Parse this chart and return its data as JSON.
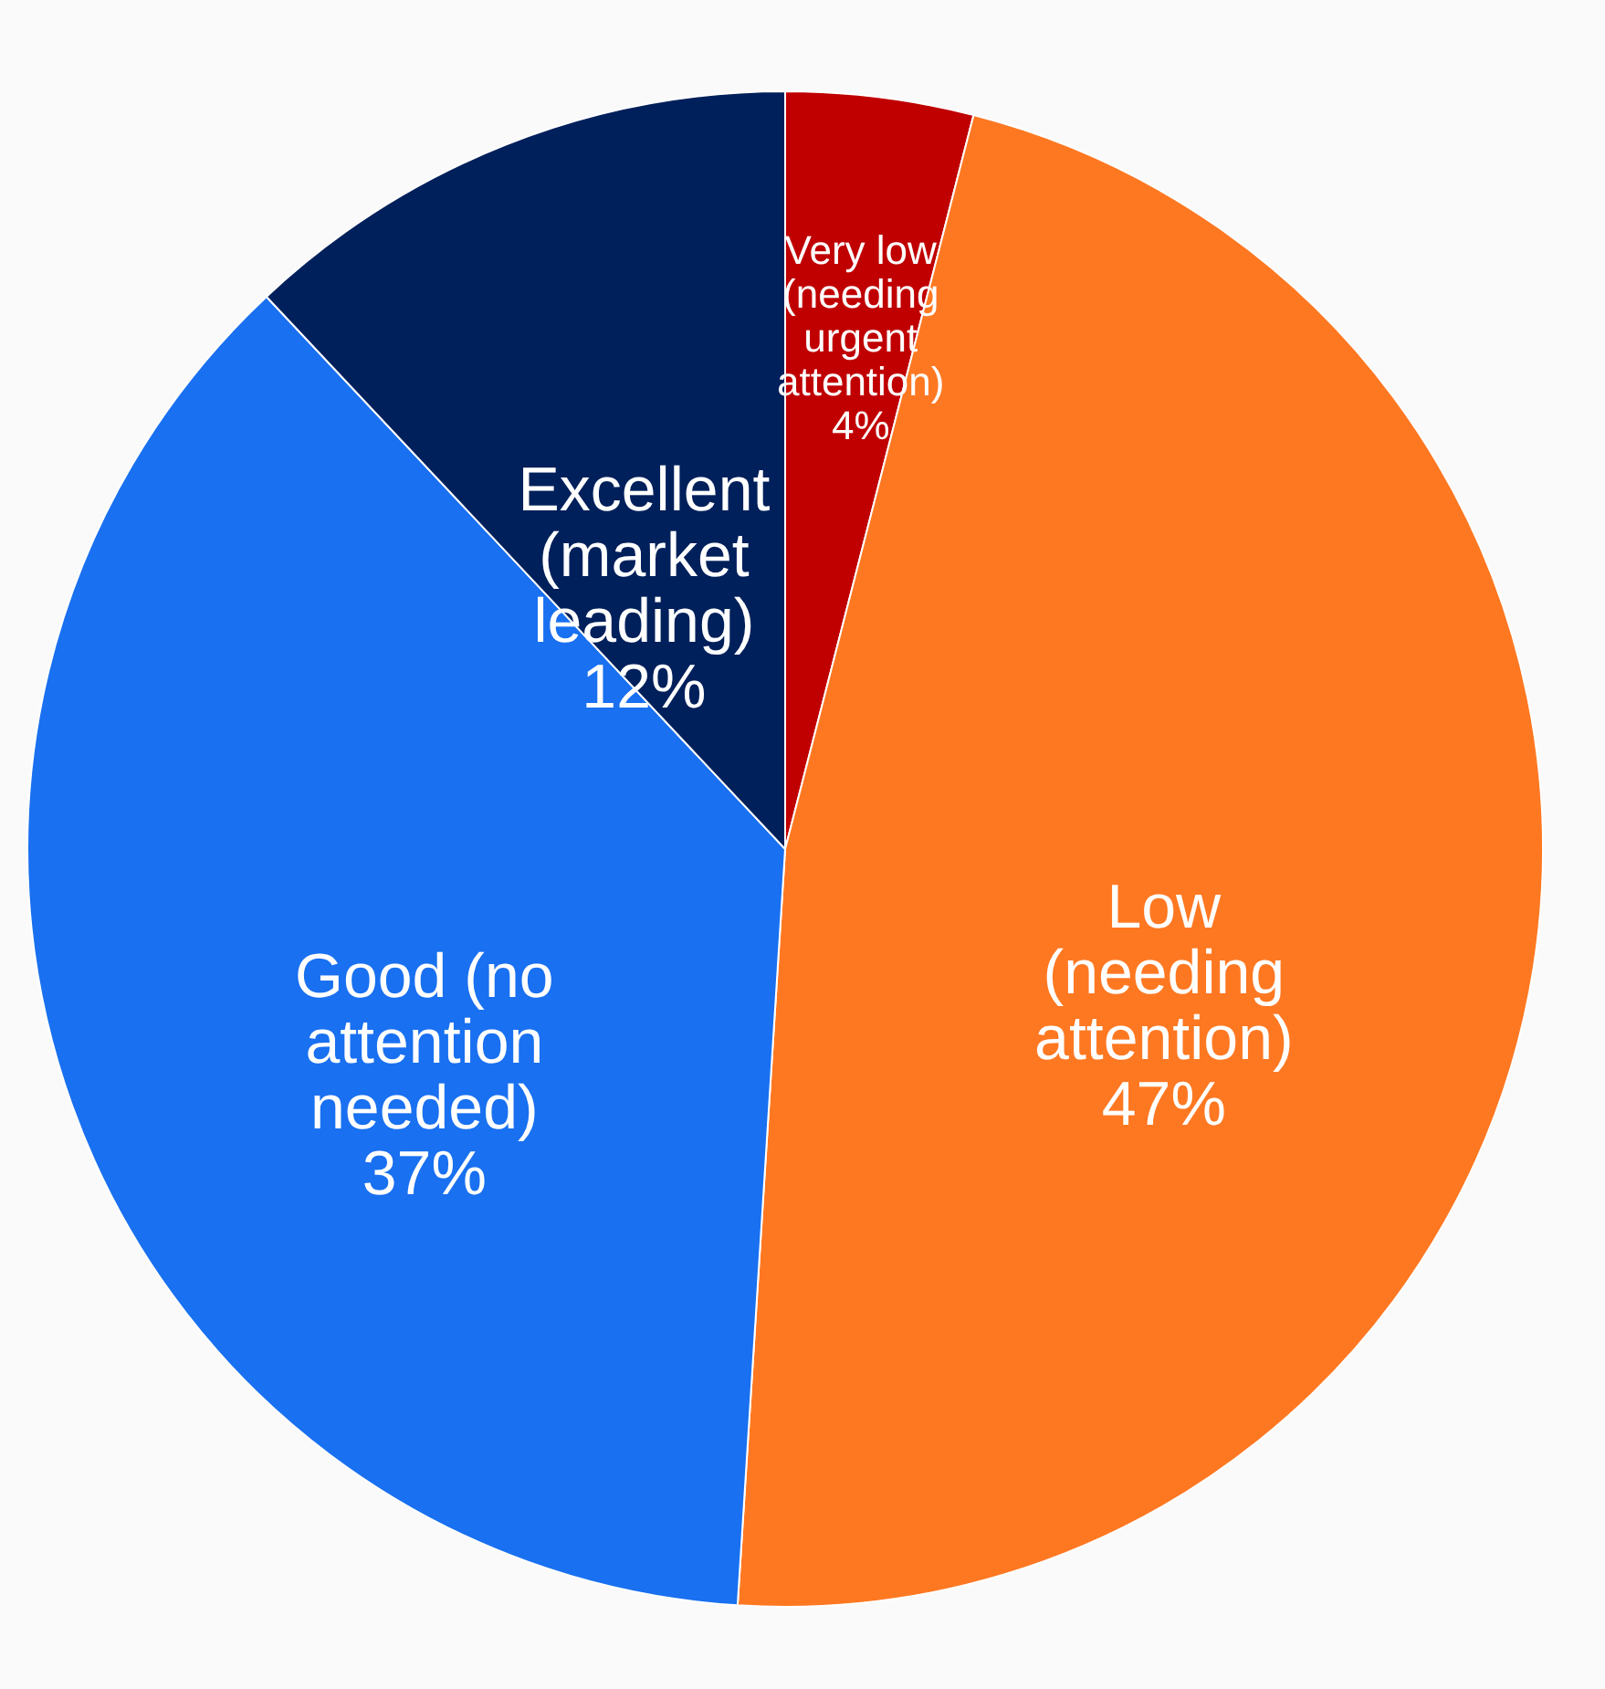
{
  "chart_data": {
    "type": "pie",
    "categories": [
      "Very low (needing urgent attention)",
      "Low (needing attention)",
      "Good (no attention needed)",
      "Excellent (market leading)"
    ],
    "values": [
      4,
      47,
      37,
      12
    ],
    "colors": [
      "#c00000",
      "#fe7822",
      "#1970f0",
      "#00205b"
    ],
    "value_labels": [
      "4%",
      "47%",
      "37%",
      "12%"
    ],
    "legend": false
  }
}
